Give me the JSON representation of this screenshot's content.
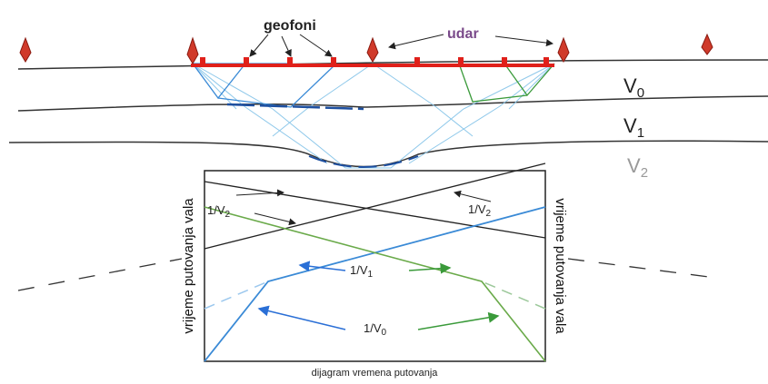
{
  "labels": {
    "geophones": "geofoni",
    "shot": "udar"
  },
  "layers": [
    {
      "letter": "V",
      "sub": "0"
    },
    {
      "letter": "V",
      "sub": "1"
    },
    {
      "letter": "V",
      "sub": "2"
    }
  ],
  "graph": {
    "y_axis_left": "vrijeme putovanja vala",
    "y_axis_right": "vrijeme putovanja vala",
    "caption": "dijagram vremena putovanja",
    "slopes": [
      {
        "text": "1/V",
        "sub": "2"
      },
      {
        "text": "1/V",
        "sub": "2"
      },
      {
        "text": "1/V",
        "sub": "1"
      },
      {
        "text": "1/V",
        "sub": "0"
      }
    ]
  }
}
